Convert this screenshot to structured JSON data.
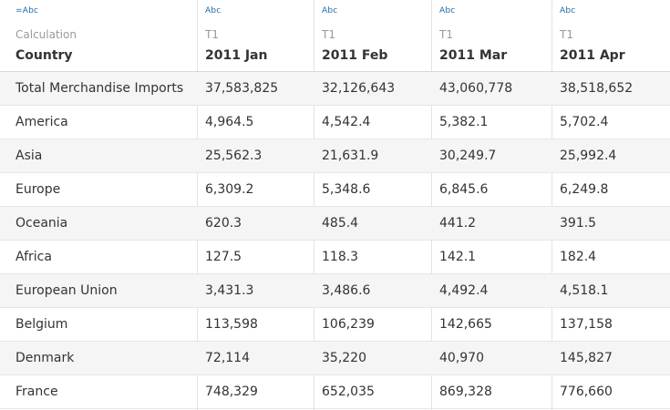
{
  "header": {
    "row_header": {
      "type_badge": "=Abc",
      "sub_label": "Calculation",
      "title": "Country"
    },
    "columns": [
      {
        "type_badge": "Abc",
        "sub_label": "T1",
        "title": "2011 Jan"
      },
      {
        "type_badge": "Abc",
        "sub_label": "T1",
        "title": "2011 Feb"
      },
      {
        "type_badge": "Abc",
        "sub_label": "T1",
        "title": "2011 Mar"
      },
      {
        "type_badge": "Abc",
        "sub_label": "T1",
        "title": "2011 Apr"
      }
    ]
  },
  "rows": [
    {
      "country": "Total Merchandise Imports",
      "values": [
        "37,583,825",
        "32,126,643",
        "43,060,778",
        "38,518,652"
      ]
    },
    {
      "country": "America",
      "values": [
        "4,964.5",
        "4,542.4",
        "5,382.1",
        "5,702.4"
      ]
    },
    {
      "country": "Asia",
      "values": [
        "25,562.3",
        "21,631.9",
        "30,249.7",
        "25,992.4"
      ]
    },
    {
      "country": "Europe",
      "values": [
        "6,309.2",
        "5,348.6",
        "6,845.6",
        "6,249.8"
      ]
    },
    {
      "country": "Oceania",
      "values": [
        "620.3",
        "485.4",
        "441.2",
        "391.5"
      ]
    },
    {
      "country": "Africa",
      "values": [
        "127.5",
        "118.3",
        "142.1",
        "182.4"
      ]
    },
    {
      "country": "European Union",
      "values": [
        "3,431.3",
        "3,486.6",
        "4,492.4",
        "4,518.1"
      ]
    },
    {
      "country": "Belgium",
      "values": [
        "113,598",
        "106,239",
        "142,665",
        "137,158"
      ]
    },
    {
      "country": "Denmark",
      "values": [
        "72,114",
        "35,220",
        "40,970",
        "145,827"
      ]
    },
    {
      "country": "France",
      "values": [
        "748,329",
        "652,035",
        "869,328",
        "776,660"
      ]
    }
  ],
  "colors": {
    "badge": "#1f6aa5",
    "alt_row": "#f5f5f5",
    "divider": "#e3e3e3"
  }
}
